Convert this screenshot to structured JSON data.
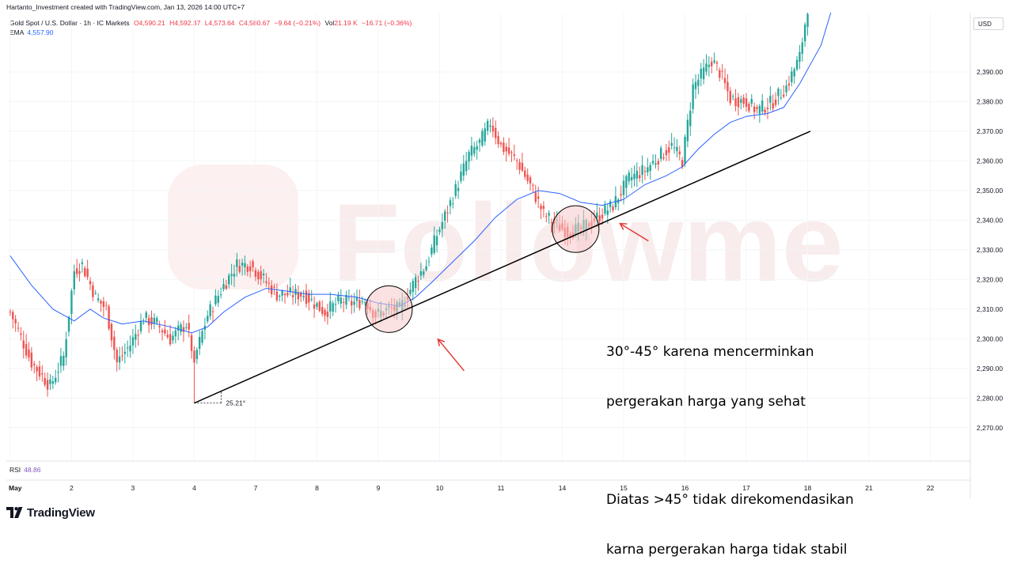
{
  "header": {
    "credit": "Hartanto_Investment created with TradingView.com, Jan 13, 2026 14:00 UTC+7"
  },
  "legend": {
    "symbol": "Gold Spot / U.S. Dollar · 1h · IC Markets",
    "open": "O4,590.21",
    "high": "H4,592.37",
    "low": "L4,573.64",
    "close": "C4,580.67",
    "change": "−9.64 (−0.21%)",
    "vol_label": "Vol",
    "vol": "21.19 K",
    "vol_change": "−16.71 (−0.36%)",
    "ema_label": "EMA",
    "ema_value": "4,557.90"
  },
  "currency": "USD",
  "rsi": {
    "label": "RSI",
    "value": "48.86"
  },
  "logo": {
    "brand": "TradingView"
  },
  "watermark": "Followme",
  "annotation": {
    "line1": "30°-45° karena mencerminkan",
    "line2": "pergerakan harga yang sehat",
    "line3": "Diatas >45° tidak direkomendasikan",
    "line4": "karna pergerakan harga tidak stabil"
  },
  "colors": {
    "up": "#26a69a",
    "down": "#ef5350",
    "ema": "#2962ff",
    "trendline": "#000000",
    "arrow": "#e53935",
    "circle_fill": "#f8c8c8"
  },
  "chart_data": {
    "type": "candlestick",
    "symbol": "Gold Spot / U.S. Dollar",
    "timeframe": "1h",
    "ylim": [
      2263,
      2410
    ],
    "y_ticks": [
      "2,270.00",
      "2,280.00",
      "2,290.00",
      "2,300.00",
      "2,310.00",
      "2,320.00",
      "2,330.00",
      "2,340.00",
      "2,350.00",
      "2,360.00",
      "2,370.00",
      "2,380.00",
      "2,390.00"
    ],
    "y_tick_values": [
      2270,
      2280,
      2290,
      2300,
      2310,
      2320,
      2330,
      2340,
      2350,
      2360,
      2370,
      2380,
      2390
    ],
    "x_ticks": [
      "May",
      "2",
      "3",
      "4",
      "7",
      "8",
      "9",
      "10",
      "11",
      "14",
      "15",
      "16",
      "17",
      "18",
      "21",
      "22"
    ],
    "x_tick_index": [
      0,
      23,
      46,
      69,
      92,
      115,
      138,
      161,
      184,
      207,
      230,
      253,
      276,
      299,
      322,
      345
    ],
    "price_path": [
      [
        0,
        2309
      ],
      [
        8,
        2292
      ],
      [
        15,
        2284
      ],
      [
        20,
        2294
      ],
      [
        24,
        2323
      ],
      [
        27,
        2325
      ],
      [
        32,
        2314
      ],
      [
        36,
        2310
      ],
      [
        40,
        2292
      ],
      [
        45,
        2298
      ],
      [
        50,
        2307
      ],
      [
        55,
        2305
      ],
      [
        60,
        2300
      ],
      [
        66,
        2305
      ],
      [
        69,
        2293
      ],
      [
        74,
        2308
      ],
      [
        80,
        2318
      ],
      [
        85,
        2325
      ],
      [
        90,
        2325
      ],
      [
        95,
        2320
      ],
      [
        100,
        2315
      ],
      [
        110,
        2315
      ],
      [
        118,
        2309
      ],
      [
        124,
        2313
      ],
      [
        128,
        2312
      ],
      [
        133,
        2313
      ],
      [
        137,
        2308
      ],
      [
        142,
        2310
      ],
      [
        146,
        2310
      ],
      [
        152,
        2320
      ],
      [
        156,
        2325
      ],
      [
        160,
        2335
      ],
      [
        166,
        2348
      ],
      [
        172,
        2362
      ],
      [
        176,
        2366
      ],
      [
        180,
        2373
      ],
      [
        184,
        2365
      ],
      [
        190,
        2360
      ],
      [
        196,
        2350
      ],
      [
        200,
        2342
      ],
      [
        204,
        2339
      ],
      [
        209,
        2336
      ],
      [
        214,
        2337
      ],
      [
        220,
        2341
      ],
      [
        226,
        2345
      ],
      [
        232,
        2354
      ],
      [
        238,
        2357
      ],
      [
        244,
        2362
      ],
      [
        248,
        2365
      ],
      [
        252,
        2360
      ],
      [
        256,
        2385
      ],
      [
        260,
        2390
      ],
      [
        263,
        2394
      ],
      [
        266,
        2390
      ],
      [
        270,
        2381
      ],
      [
        276,
        2380
      ],
      [
        280,
        2377
      ],
      [
        286,
        2380
      ],
      [
        291,
        2385
      ],
      [
        296,
        2395
      ],
      [
        299,
        2412
      ]
    ],
    "ema_path": [
      [
        0,
        2328
      ],
      [
        8,
        2318
      ],
      [
        16,
        2310
      ],
      [
        24,
        2306
      ],
      [
        30,
        2310
      ],
      [
        35,
        2307
      ],
      [
        42,
        2305
      ],
      [
        50,
        2306
      ],
      [
        60,
        2304
      ],
      [
        68,
        2302
      ],
      [
        74,
        2304
      ],
      [
        80,
        2309
      ],
      [
        88,
        2314
      ],
      [
        96,
        2317
      ],
      [
        104,
        2316
      ],
      [
        112,
        2315
      ],
      [
        120,
        2315
      ],
      [
        130,
        2314
      ],
      [
        138,
        2312
      ],
      [
        146,
        2311
      ],
      [
        152,
        2314
      ],
      [
        158,
        2319
      ],
      [
        166,
        2326
      ],
      [
        174,
        2333
      ],
      [
        182,
        2341
      ],
      [
        190,
        2347
      ],
      [
        198,
        2350
      ],
      [
        206,
        2349
      ],
      [
        214,
        2346
      ],
      [
        222,
        2345
      ],
      [
        230,
        2347
      ],
      [
        238,
        2352
      ],
      [
        246,
        2355
      ],
      [
        252,
        2358
      ],
      [
        258,
        2364
      ],
      [
        264,
        2369
      ],
      [
        270,
        2373
      ],
      [
        276,
        2375
      ],
      [
        284,
        2376
      ],
      [
        290,
        2378
      ],
      [
        296,
        2386
      ],
      [
        304,
        2399
      ],
      [
        308,
        2411
      ]
    ],
    "trendline": {
      "from": [
        69,
        2278.3
      ],
      "to": [
        300,
        2370
      ]
    },
    "angle_label": "25.21°",
    "highlight_circles": [
      {
        "x": 142,
        "y": 2310
      },
      {
        "x": 212,
        "y": 2337
      }
    ]
  }
}
